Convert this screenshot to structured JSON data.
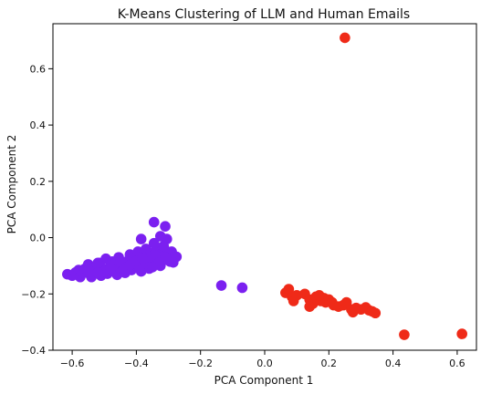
{
  "chart_data": {
    "type": "scatter",
    "title": "K-Means Clustering of LLM and Human Emails",
    "xlabel": "PCA Component 1",
    "ylabel": "PCA Component 2",
    "xlim": [
      -0.66,
      0.66
    ],
    "ylim": [
      -0.4,
      0.76
    ],
    "x_ticks": [
      -0.6,
      -0.4,
      -0.2,
      0.0,
      0.2,
      0.4,
      0.6
    ],
    "x_tick_labels": [
      "−0.6",
      "−0.4",
      "−0.2",
      "0.0",
      "0.2",
      "0.4",
      "0.6"
    ],
    "y_ticks": [
      -0.4,
      -0.2,
      0.0,
      0.2,
      0.4,
      0.6
    ],
    "y_tick_labels": [
      "−0.4",
      "−0.2",
      "0.0",
      "0.2",
      "0.4",
      "0.6"
    ],
    "grid": false,
    "series": [
      {
        "color": "#7b20f0",
        "points": [
          [
            -0.615,
            -0.13
          ],
          [
            -0.6,
            -0.135
          ],
          [
            -0.59,
            -0.124
          ],
          [
            -0.58,
            -0.115
          ],
          [
            -0.575,
            -0.14
          ],
          [
            -0.565,
            -0.125
          ],
          [
            -0.56,
            -0.11
          ],
          [
            -0.55,
            -0.095
          ],
          [
            -0.545,
            -0.13
          ],
          [
            -0.54,
            -0.14
          ],
          [
            -0.53,
            -0.118
          ],
          [
            -0.525,
            -0.102
          ],
          [
            -0.515,
            -0.09
          ],
          [
            -0.51,
            -0.135
          ],
          [
            -0.505,
            -0.11
          ],
          [
            -0.495,
            -0.075
          ],
          [
            -0.49,
            -0.128
          ],
          [
            -0.48,
            -0.1
          ],
          [
            -0.475,
            -0.085
          ],
          [
            -0.47,
            -0.12
          ],
          [
            -0.46,
            -0.132
          ],
          [
            -0.455,
            -0.07
          ],
          [
            -0.45,
            -0.11
          ],
          [
            -0.44,
            -0.095
          ],
          [
            -0.435,
            -0.125
          ],
          [
            -0.43,
            -0.085
          ],
          [
            -0.42,
            -0.06
          ],
          [
            -0.415,
            -0.115
          ],
          [
            -0.41,
            -0.075
          ],
          [
            -0.4,
            -0.1
          ],
          [
            -0.395,
            -0.05
          ],
          [
            -0.39,
            -0.09
          ],
          [
            -0.385,
            -0.12
          ],
          [
            -0.38,
            -0.065
          ],
          [
            -0.375,
            -0.095
          ],
          [
            -0.37,
            -0.04
          ],
          [
            -0.365,
            -0.08
          ],
          [
            -0.36,
            -0.11
          ],
          [
            -0.355,
            -0.055
          ],
          [
            -0.35,
            -0.09
          ],
          [
            -0.345,
            -0.06
          ],
          [
            -0.34,
            -0.085
          ],
          [
            -0.335,
            -0.045
          ],
          [
            -0.33,
            -0.075
          ],
          [
            -0.325,
            -0.1
          ],
          [
            -0.32,
            -0.055
          ],
          [
            -0.315,
            -0.08
          ],
          [
            -0.31,
            -0.045
          ],
          [
            -0.305,
            -0.07
          ],
          [
            -0.3,
            -0.06
          ],
          [
            -0.295,
            -0.085
          ],
          [
            -0.29,
            -0.05
          ],
          [
            -0.285,
            -0.07
          ],
          [
            -0.275,
            -0.068
          ],
          [
            -0.285,
            -0.088
          ],
          [
            -0.55,
            -0.115
          ],
          [
            -0.52,
            -0.09
          ],
          [
            -0.5,
            -0.12
          ],
          [
            -0.47,
            -0.095
          ],
          [
            -0.45,
            -0.085
          ],
          [
            -0.43,
            -0.105
          ],
          [
            -0.41,
            -0.09
          ],
          [
            -0.39,
            -0.105
          ],
          [
            -0.37,
            -0.09
          ],
          [
            -0.36,
            -0.07
          ],
          [
            -0.52,
            -0.125
          ],
          [
            -0.48,
            -0.11
          ],
          [
            -0.44,
            -0.115
          ],
          [
            -0.42,
            -0.098
          ],
          [
            -0.4,
            -0.083
          ],
          [
            -0.38,
            -0.075
          ],
          [
            -0.34,
            -0.065
          ],
          [
            -0.31,
            -0.07
          ],
          [
            -0.33,
            -0.09
          ],
          [
            -0.35,
            -0.105
          ],
          [
            -0.345,
            0.055
          ],
          [
            -0.31,
            0.04
          ],
          [
            -0.325,
            0.005
          ],
          [
            -0.305,
            -0.005
          ],
          [
            -0.385,
            -0.005
          ],
          [
            -0.345,
            -0.02
          ],
          [
            -0.315,
            -0.03
          ],
          [
            -0.135,
            -0.17
          ],
          [
            -0.07,
            -0.178
          ]
        ]
      },
      {
        "color": "#ef2a18",
        "points": [
          [
            0.25,
            0.71
          ],
          [
            0.065,
            -0.196
          ],
          [
            0.075,
            -0.183
          ],
          [
            0.085,
            -0.21
          ],
          [
            0.09,
            -0.225
          ],
          [
            0.1,
            -0.205
          ],
          [
            0.125,
            -0.2
          ],
          [
            0.14,
            -0.22
          ],
          [
            0.15,
            -0.235
          ],
          [
            0.16,
            -0.21
          ],
          [
            0.175,
            -0.225
          ],
          [
            0.185,
            -0.215
          ],
          [
            0.19,
            -0.23
          ],
          [
            0.2,
            -0.22
          ],
          [
            0.21,
            -0.23
          ],
          [
            0.215,
            -0.24
          ],
          [
            0.23,
            -0.245
          ],
          [
            0.245,
            -0.24
          ],
          [
            0.255,
            -0.23
          ],
          [
            0.27,
            -0.255
          ],
          [
            0.275,
            -0.265
          ],
          [
            0.285,
            -0.25
          ],
          [
            0.3,
            -0.255
          ],
          [
            0.315,
            -0.248
          ],
          [
            0.325,
            -0.258
          ],
          [
            0.335,
            -0.262
          ],
          [
            0.345,
            -0.268
          ],
          [
            0.14,
            -0.245
          ],
          [
            0.17,
            -0.205
          ],
          [
            0.435,
            -0.345
          ],
          [
            0.615,
            -0.342
          ]
        ]
      }
    ]
  }
}
